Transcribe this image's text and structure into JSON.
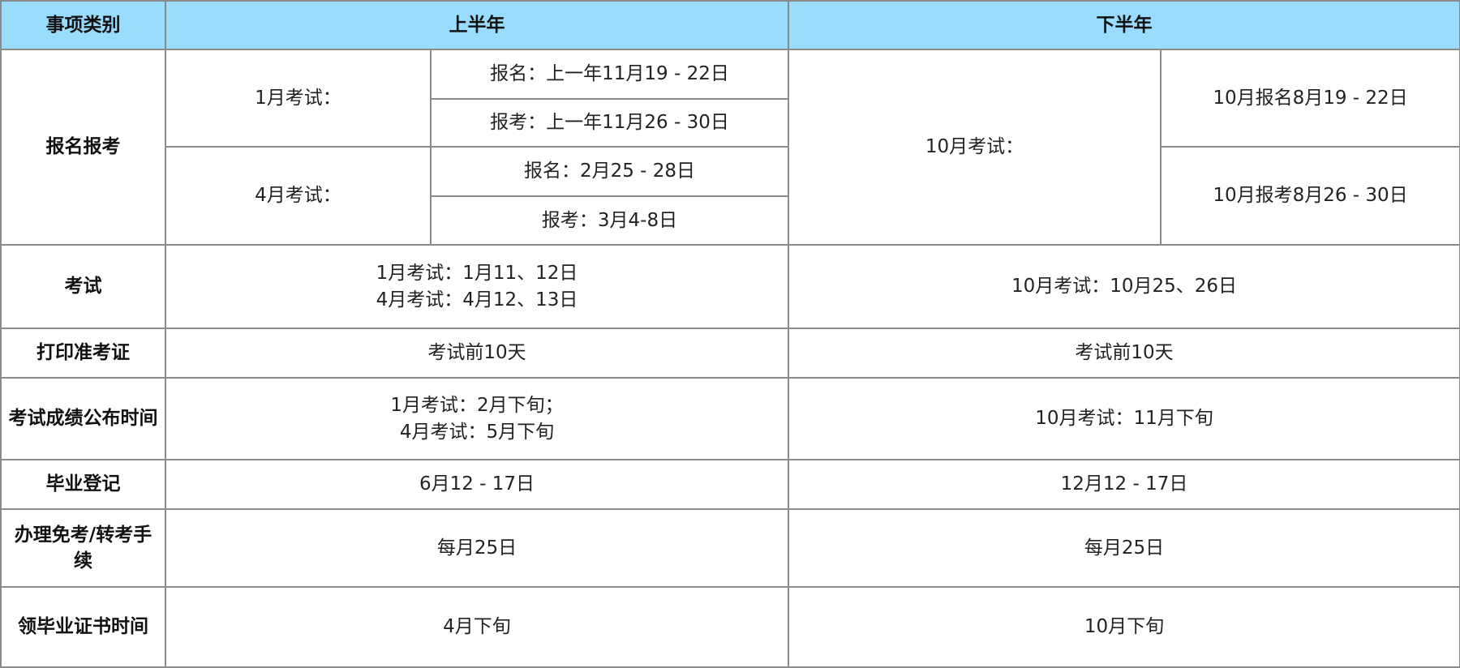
{
  "header": {
    "category": "事项类别",
    "first_half": "上半年",
    "second_half": "下半年"
  },
  "colors": {
    "header_bg": "#99dcfd",
    "border": "#8a8a8a"
  },
  "rows": {
    "registration": {
      "label": "报名报考",
      "jan_exam": "1月考试：",
      "jan_signup": "报名：上一年11月19 - 22日",
      "jan_apply": "报考：上一年11月26 - 30日",
      "apr_exam": "4月考试：",
      "apr_signup": "报名：2月25 - 28日",
      "apr_apply": "报考：3月4-8日",
      "oct_exam": "10月考试：",
      "oct_signup": "10月报名8月19 - 22日",
      "oct_apply": "10月报考8月26 - 30日"
    },
    "exam": {
      "label": "考试",
      "first_line1": "1月考试：1月11、12日",
      "first_line2": "4月考试：4月12、13日",
      "second": "10月考试：10月25、26日"
    },
    "admission": {
      "label": "打印准考证",
      "first": "考试前10天",
      "second": "考试前10天"
    },
    "results": {
      "label": "考试成绩公布时间",
      "first_line1": "1月考试：2月下旬；",
      "first_line2": "4月考试：5月下旬",
      "second": "10月考试：11月下旬"
    },
    "graduation": {
      "label": "毕业登记",
      "first": "6月12 - 17日",
      "second": "12月12 - 17日"
    },
    "exemption": {
      "label": "办理免考/转考手续",
      "first": "每月25日",
      "second": "每月25日"
    },
    "certificate": {
      "label": "领毕业证书时间",
      "first": "4月下旬",
      "second": "10月下旬"
    }
  }
}
